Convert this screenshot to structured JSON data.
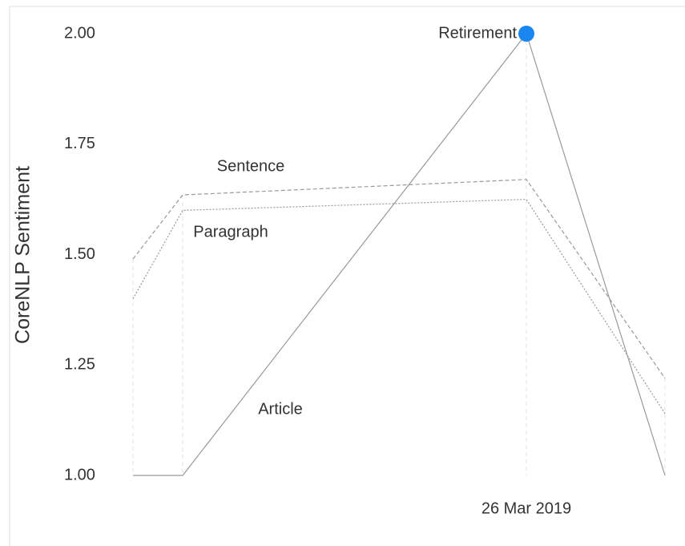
{
  "chart_data": {
    "type": "line",
    "y_label": "CoreNLP Sentiment",
    "categories": [
      null,
      null,
      "26 Mar 2019",
      null
    ],
    "series": [
      {
        "name": "Sentence",
        "color": "#999999",
        "style": "dashed",
        "values": [
          1.49,
          1.635,
          1.67,
          1.22
        ]
      },
      {
        "name": "Paragraph",
        "color": "#999999",
        "style": "dotted",
        "values": [
          1.4,
          1.6,
          1.625,
          1.14
        ]
      },
      {
        "name": "Article",
        "color": "#999999",
        "style": "solid",
        "values": [
          1.0,
          1.0,
          2.0,
          1.0
        ]
      }
    ],
    "annotation": {
      "text": "Retirement",
      "series": 2,
      "index": 2,
      "color": "#1a86f0"
    },
    "ylim": [
      1.0,
      2.0
    ],
    "yticks": [
      {
        "value": 1.0,
        "label": "1.00"
      },
      {
        "value": 1.25,
        "label": "1.25"
      },
      {
        "value": 1.5,
        "label": "1.50"
      },
      {
        "value": 1.75,
        "label": "1.75"
      },
      {
        "value": 2.0,
        "label": "2.00"
      }
    ]
  }
}
